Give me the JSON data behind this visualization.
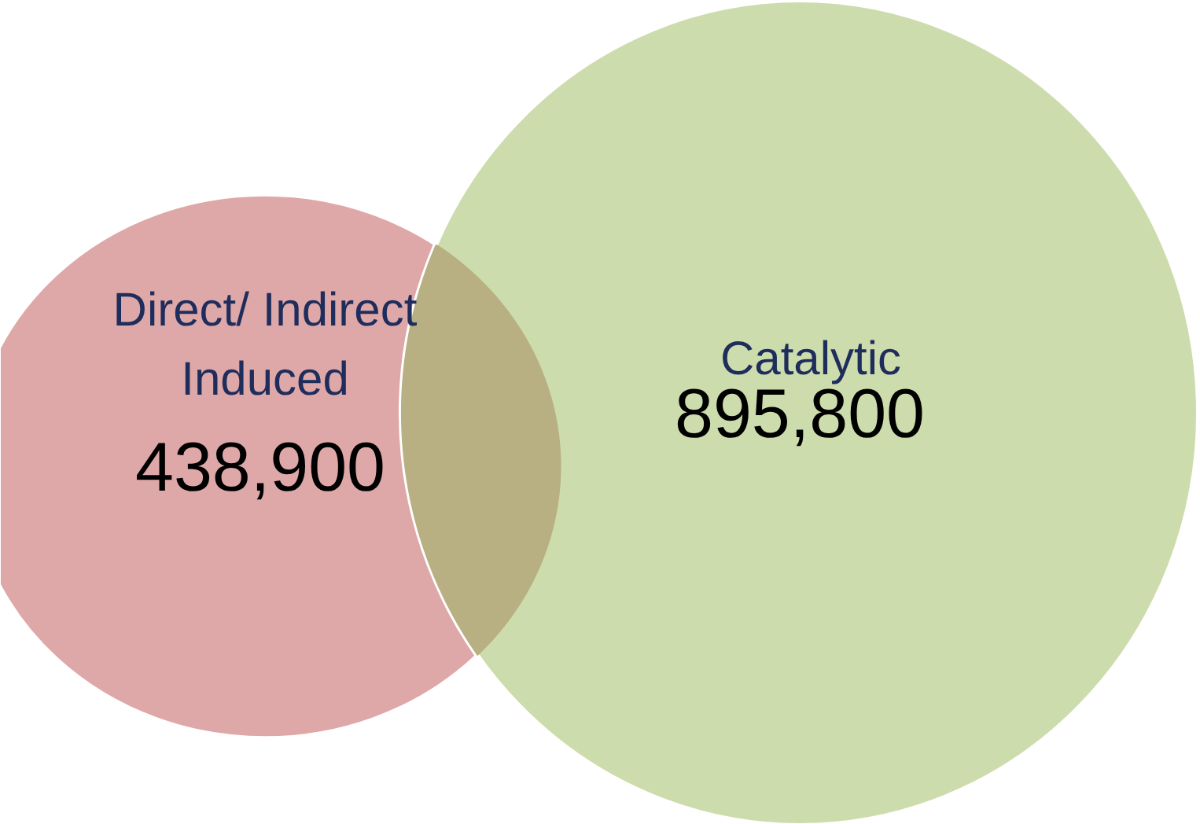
{
  "chart_data": {
    "type": "other",
    "categories": [
      "Direct/ Indirect\nInduced",
      "Catalytic"
    ],
    "values": [
      438900,
      895800
    ],
    "value_labels": [
      "438,900",
      "895,800"
    ],
    "colors": [
      "#dfa8a8",
      "#cddcac"
    ]
  }
}
